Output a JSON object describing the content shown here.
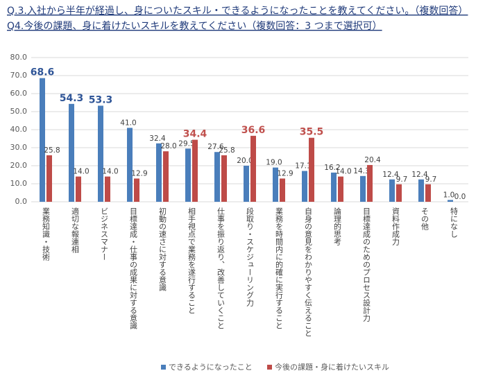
{
  "header": {
    "lines": [
      "Q.3.入社から半年が経過し、身についたスキル・できるようになったことを教えてください。（複数回答）",
      "Q4.今後の課題、身に着けたいスキルを教えてください（複数回答：3 つまで選択可）"
    ]
  },
  "chart_data": {
    "type": "bar",
    "categories": [
      "業務知識・技術",
      "適切な報連相",
      "ビジネスマナー",
      "目標達成・仕事の成果に対する意識",
      "初動の速さに対する意識",
      "相手視点で業務を遂行すること",
      "仕事を振り返り、改善していくこと",
      "段取り・スケジューリング力",
      "業務を時間内に的確に実行すること",
      "自身の意見をわかりやすく伝えること",
      "論理的思考",
      "目標達成のためのプロセス設計力",
      "資料作成力",
      "その他",
      "特になし"
    ],
    "series": [
      {
        "name": "できるようになったこと",
        "color": "#4a7ebb",
        "values": [
          68.6,
          54.3,
          53.3,
          41.0,
          32.4,
          29.5,
          27.6,
          20.0,
          19.0,
          17.1,
          16.2,
          14.3,
          12.4,
          12.4,
          1.0
        ],
        "value_labels": [
          "68.6",
          "54.3",
          "53.3",
          "41.0",
          "32.4",
          "29.5",
          "27.6",
          "20.0",
          "19.0",
          "17.1",
          "16.2",
          "14.3",
          "12.4",
          "12.4",
          "1.0"
        ]
      },
      {
        "name": "今後の課題・身に着けたいスキル",
        "color": "#be4b48",
        "values": [
          25.8,
          14.0,
          14.0,
          12.9,
          28.0,
          34.4,
          25.8,
          36.6,
          12.9,
          35.5,
          14.0,
          20.4,
          9.7,
          9.7,
          0.0
        ],
        "value_labels": [
          "25.8",
          "14.0",
          "14.0",
          "12.9",
          "28.0",
          "34.4",
          "25.8",
          "36.6",
          "12.9",
          "35.5",
          "14.0",
          "20.4",
          "9.7",
          "9.7",
          "0.0"
        ]
      }
    ],
    "ylim": [
      0,
      80
    ],
    "yticks": [
      {
        "value": 0,
        "label": "0.0"
      },
      {
        "value": 10,
        "label": "10.0"
      },
      {
        "value": 20,
        "label": "20.0"
      },
      {
        "value": 30,
        "label": "30.0"
      },
      {
        "value": 40,
        "label": "40.0"
      },
      {
        "value": 50,
        "label": "50.0"
      },
      {
        "value": 60,
        "label": "60.0"
      },
      {
        "value": 70,
        "label": "70.0"
      },
      {
        "value": 80,
        "label": "80.0"
      }
    ],
    "grid": true,
    "legend": "bottom"
  }
}
